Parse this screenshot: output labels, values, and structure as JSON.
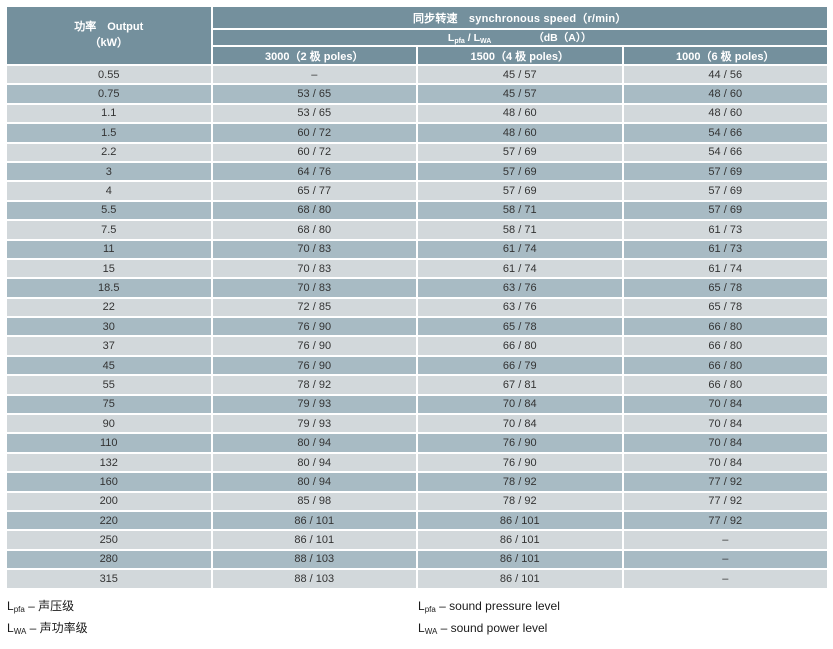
{
  "table": {
    "output_header": {
      "line1": "功率　Output",
      "line2": "（kW）"
    },
    "speed_header": "同步转速　synchronous speed（r/min）",
    "level_header": {
      "l": "L",
      "sub1": "pfa",
      "mid": " / L",
      "sub2": "WA",
      "unit": "（dB（A））"
    },
    "pole_headers": [
      "3000（2 极 poles）",
      "1500（4 极 poles）",
      "1000（6 极 poles）"
    ],
    "rows": [
      {
        "kw": "0.55",
        "p2": "–",
        "p4": "45 / 57",
        "p6": "44 / 56"
      },
      {
        "kw": "0.75",
        "p2": "53 / 65",
        "p4": "45 / 57",
        "p6": "48 / 60"
      },
      {
        "kw": "1.1",
        "p2": "53 / 65",
        "p4": "48 / 60",
        "p6": "48 / 60"
      },
      {
        "kw": "1.5",
        "p2": "60 / 72",
        "p4": "48 / 60",
        "p6": "54 / 66"
      },
      {
        "kw": "2.2",
        "p2": "60 / 72",
        "p4": "57 / 69",
        "p6": "54 / 66"
      },
      {
        "kw": "3",
        "p2": "64 / 76",
        "p4": "57 / 69",
        "p6": "57 / 69"
      },
      {
        "kw": "4",
        "p2": "65 / 77",
        "p4": "57 / 69",
        "p6": "57 / 69"
      },
      {
        "kw": "5.5",
        "p2": "68 / 80",
        "p4": "58 / 71",
        "p6": "57 / 69"
      },
      {
        "kw": "7.5",
        "p2": "68 / 80",
        "p4": "58 / 71",
        "p6": "61 / 73"
      },
      {
        "kw": "11",
        "p2": "70 / 83",
        "p4": "61 / 74",
        "p6": "61 / 73"
      },
      {
        "kw": "15",
        "p2": "70 / 83",
        "p4": "61 / 74",
        "p6": "61 / 74"
      },
      {
        "kw": "18.5",
        "p2": "70 / 83",
        "p4": "63 / 76",
        "p6": "65 / 78"
      },
      {
        "kw": "22",
        "p2": "72 / 85",
        "p4": "63 / 76",
        "p6": "65 / 78"
      },
      {
        "kw": "30",
        "p2": "76 / 90",
        "p4": "65 / 78",
        "p6": "66 / 80"
      },
      {
        "kw": "37",
        "p2": "76 / 90",
        "p4": "66 / 80",
        "p6": "66 / 80"
      },
      {
        "kw": "45",
        "p2": "76 / 90",
        "p4": "66 / 79",
        "p6": "66 / 80"
      },
      {
        "kw": "55",
        "p2": "78 / 92",
        "p4": "67 / 81",
        "p6": "66 / 80"
      },
      {
        "kw": "75",
        "p2": "79 / 93",
        "p4": "70 / 84",
        "p6": "70 / 84"
      },
      {
        "kw": "90",
        "p2": "79 / 93",
        "p4": "70 / 84",
        "p6": "70 / 84"
      },
      {
        "kw": "110",
        "p2": "80 / 94",
        "p4": "76 / 90",
        "p6": "70 / 84"
      },
      {
        "kw": "132",
        "p2": "80 / 94",
        "p4": "76 / 90",
        "p6": "70 / 84"
      },
      {
        "kw": "160",
        "p2": "80 / 94",
        "p4": "78 / 92",
        "p6": "77 / 92"
      },
      {
        "kw": "200",
        "p2": "85 / 98",
        "p4": "78 / 92",
        "p6": "77 / 92"
      },
      {
        "kw": "220",
        "p2": "86 / 101",
        "p4": "86 / 101",
        "p6": "77 / 92"
      },
      {
        "kw": "250",
        "p2": "86 / 101",
        "p4": "86 / 101",
        "p6": "–"
      },
      {
        "kw": "280",
        "p2": "88 / 103",
        "p4": "86 / 101",
        "p6": "–"
      },
      {
        "kw": "315",
        "p2": "88 / 103",
        "p4": "86 / 101",
        "p6": "–"
      }
    ]
  },
  "footnotes": {
    "cn": [
      {
        "pre": "L",
        "sub": "pfa",
        "text": " – 声压级"
      },
      {
        "pre": "L",
        "sub": "WA",
        "text": " – 声功率级"
      }
    ],
    "en": [
      {
        "pre": "L",
        "sub": "pfa",
        "text": " – sound pressure level"
      },
      {
        "pre": "L",
        "sub": "WA",
        "text": " – sound power level"
      }
    ]
  },
  "colors": {
    "header_bg": "#74909d",
    "row_light": "#d2d8db",
    "row_dark": "#a8bbc4",
    "cell_text": "#333333",
    "footnote_text": "#1a1a1a"
  }
}
